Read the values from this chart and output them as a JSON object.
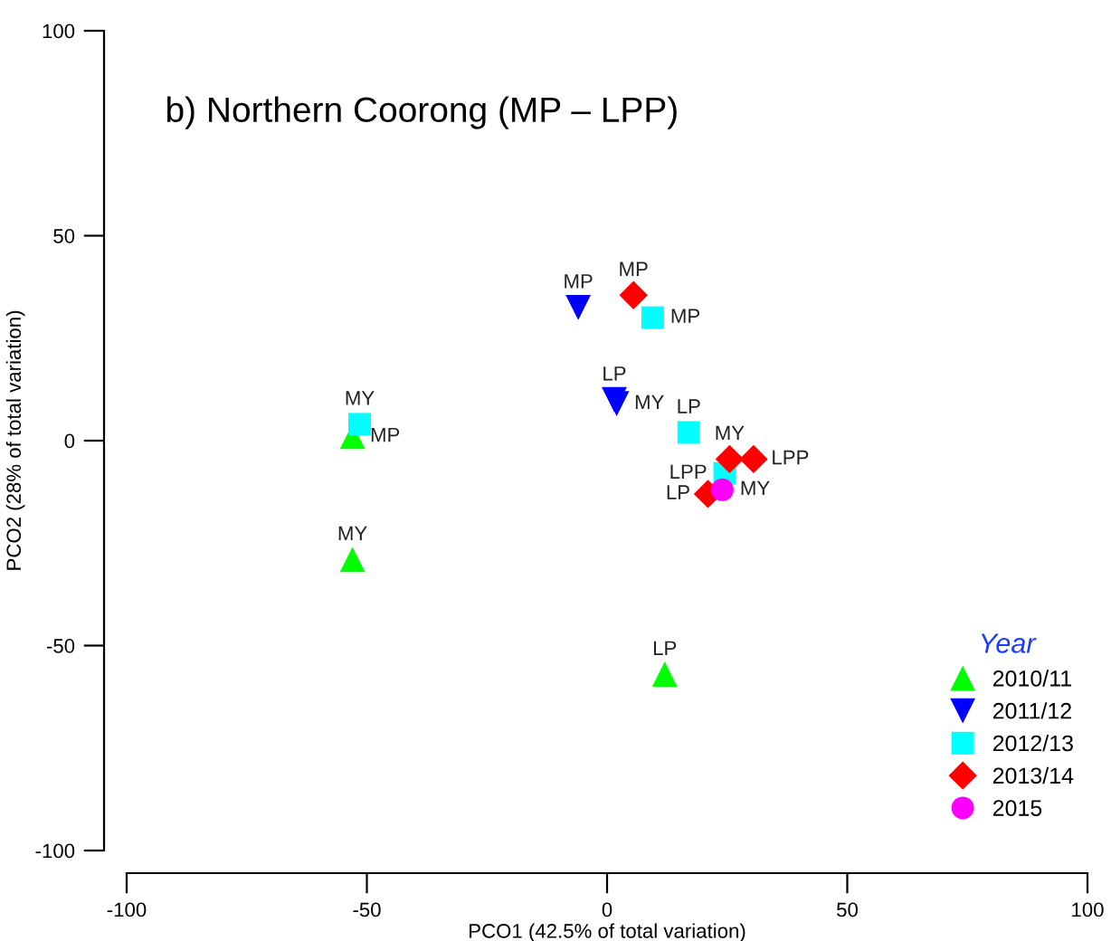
{
  "chart_data": {
    "type": "scatter",
    "title": "b) Northern Coorong (MP – LPP)",
    "xlabel": "PCO1 (42.5% of total variation)",
    "ylabel": "PCO2 (28% of total variation)",
    "legend_title": "Year",
    "legend": "bottom right",
    "grid": false,
    "xlim": [
      -100,
      100
    ],
    "xticks": [
      -100,
      -50,
      0,
      50,
      100
    ],
    "ylim": [
      -100,
      100
    ],
    "yticks": [
      -100,
      -50,
      0,
      50,
      100
    ],
    "series": [
      {
        "name": "2010/11",
        "color": "#00ff00",
        "marker": "triangle",
        "x": [
          -53,
          -53,
          12
        ],
        "values": [
          1,
          -29,
          -57
        ],
        "value_labels": [
          "MP",
          "MY",
          "LP"
        ]
      },
      {
        "name": "2011/12",
        "color": "#0000ff",
        "marker": "triangle_down",
        "x": [
          -6,
          1.5,
          2
        ],
        "values": [
          32.5,
          10,
          9
        ],
        "value_labels": [
          "MP",
          "LP",
          "MY"
        ]
      },
      {
        "name": "2012/13",
        "color": "#00ffff",
        "marker": "square",
        "x": [
          -51.5,
          9.5,
          17,
          24.5
        ],
        "values": [
          4,
          30,
          2,
          -8
        ],
        "value_labels": [
          "MY",
          "MP",
          "LP",
          "LPP"
        ]
      },
      {
        "name": "2013/14",
        "color": "#ff0000",
        "marker": "diamond",
        "x": [
          5.5,
          25.5,
          30.5,
          21
        ],
        "values": [
          35.5,
          -4.5,
          -4.5,
          -13
        ],
        "value_labels": [
          "MP",
          "MY",
          "LPP",
          "LP"
        ]
      },
      {
        "name": "2015",
        "color": "#ff00ff",
        "marker": "circle",
        "x": [
          24
        ],
        "values": [
          -12
        ],
        "value_labels": [
          "MY"
        ]
      }
    ]
  }
}
